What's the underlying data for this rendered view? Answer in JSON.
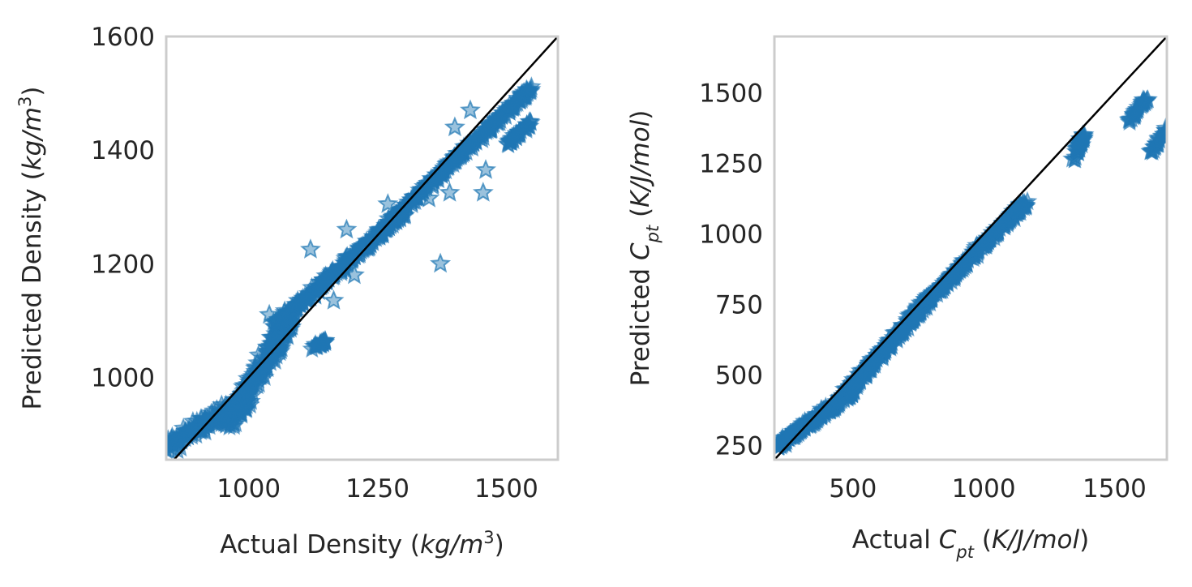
{
  "chart_data": [
    {
      "type": "scatter",
      "marker": "star",
      "color": "#1f77b4",
      "xlabel": {
        "prefix": "Actual Density (",
        "math": "kg/m",
        "sup": "3",
        "suffix": ")"
      },
      "ylabel": {
        "prefix": "Predicted Density (",
        "math": "kg/m",
        "sup": "3",
        "suffix": ")"
      },
      "xlim": [
        840,
        1600
      ],
      "ylim": [
        855,
        1600
      ],
      "xticks": [
        "1000",
        "1250",
        "1500"
      ],
      "yticks": [
        "1000",
        "1200",
        "1400",
        "1600"
      ],
      "grid": false,
      "reference_line": "y = x",
      "clusters": [
        {
          "x0": 845,
          "y0": 880,
          "x1": 1000,
          "y1": 960,
          "n": 180,
          "spread": 18
        },
        {
          "x0": 960,
          "y0": 920,
          "x1": 1080,
          "y1": 1100,
          "n": 260,
          "spread": 20
        },
        {
          "x0": 1050,
          "y0": 1090,
          "x1": 1300,
          "y1": 1290,
          "n": 300,
          "spread": 10
        },
        {
          "x0": 1280,
          "y0": 1280,
          "x1": 1550,
          "y1": 1510,
          "n": 260,
          "spread": 8
        },
        {
          "x0": 1500,
          "y0": 1410,
          "x1": 1550,
          "y1": 1450,
          "n": 40,
          "spread": 6
        },
        {
          "x0": 1120,
          "y0": 1050,
          "x1": 1150,
          "y1": 1065,
          "n": 25,
          "spread": 6
        }
      ],
      "outliers": [
        {
          "x": 1372,
          "y": 1200
        },
        {
          "x": 1430,
          "y": 1470
        },
        {
          "x": 1460,
          "y": 1365
        },
        {
          "x": 1455,
          "y": 1325
        },
        {
          "x": 1120,
          "y": 1225
        },
        {
          "x": 1165,
          "y": 1135
        },
        {
          "x": 1205,
          "y": 1180
        },
        {
          "x": 1190,
          "y": 1260
        },
        {
          "x": 1270,
          "y": 1305
        },
        {
          "x": 1350,
          "y": 1315
        },
        {
          "x": 1390,
          "y": 1325
        },
        {
          "x": 1400,
          "y": 1440
        },
        {
          "x": 1040,
          "y": 1110
        }
      ]
    },
    {
      "type": "scatter",
      "marker": "star",
      "color": "#1f77b4",
      "xlabel": {
        "prefix": "Actual ",
        "math": "C",
        "sub": "pt",
        "suffix_prefix": " (",
        "math2": "K/J/mol",
        "suffix": ")"
      },
      "ylabel": {
        "prefix": "Predicted ",
        "math": "C",
        "sub": "pt",
        "suffix_prefix": " (",
        "math2": "K/J/mol",
        "suffix": ")"
      },
      "xlim": [
        200,
        1700
      ],
      "ylim": [
        200,
        1700
      ],
      "xticks": [
        "500",
        "1000",
        "1500"
      ],
      "yticks": [
        "250",
        "500",
        "750",
        "1000",
        "1250",
        "1500"
      ],
      "grid": false,
      "reference_line": "y = x",
      "clusters": [
        {
          "x0": 210,
          "y0": 250,
          "x1": 500,
          "y1": 440,
          "n": 220,
          "spread": 18
        },
        {
          "x0": 480,
          "y0": 440,
          "x1": 800,
          "y1": 780,
          "n": 260,
          "spread": 20
        },
        {
          "x0": 780,
          "y0": 760,
          "x1": 1160,
          "y1": 1110,
          "n": 260,
          "spread": 16
        },
        {
          "x0": 1340,
          "y0": 1260,
          "x1": 1390,
          "y1": 1360,
          "n": 35,
          "spread": 12
        },
        {
          "x0": 1560,
          "y0": 1400,
          "x1": 1620,
          "y1": 1480,
          "n": 35,
          "spread": 12
        },
        {
          "x0": 1640,
          "y0": 1290,
          "x1": 1700,
          "y1": 1370,
          "n": 25,
          "spread": 12
        }
      ],
      "outliers": []
    }
  ]
}
